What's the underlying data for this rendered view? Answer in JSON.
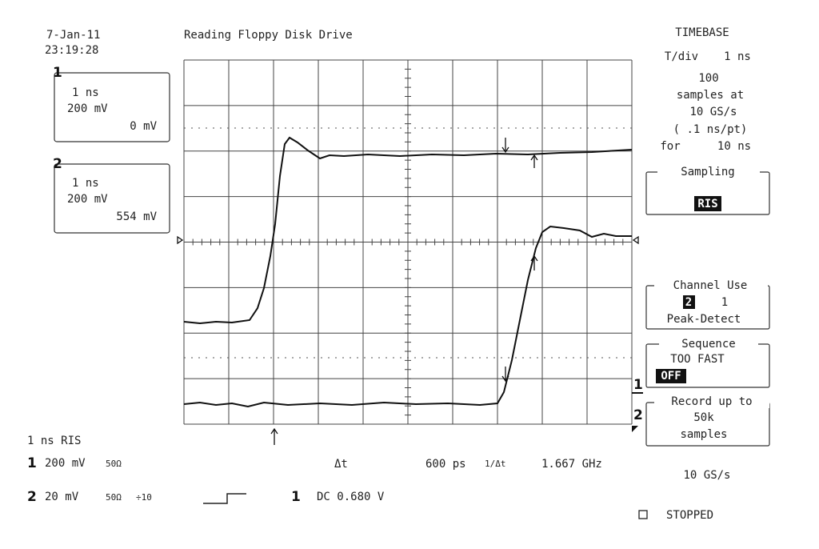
{
  "header": {
    "date": "7-Jan-11",
    "time": "23:19:28",
    "title": "Reading Floppy Disk Drive"
  },
  "channels": [
    {
      "number": "1",
      "tdiv": "1 ns",
      "vdiv": "200 mV",
      "offset": "0 mV"
    },
    {
      "number": "2",
      "tdiv": "1 ns",
      "vdiv": "200 mV",
      "offset": "554 mV"
    }
  ],
  "timebase": {
    "title": "TIMEBASE",
    "tdiv_label": "T/div",
    "tdiv": "1 ns",
    "samples": "100",
    "samples_at": "samples at",
    "rate": "10 GS/s",
    "per_point": "( .1 ns/pt)",
    "for_label": "for",
    "duration": "10 ns"
  },
  "menu": {
    "sampling": {
      "title": "Sampling",
      "value": "RIS"
    },
    "channel_use": {
      "title": "Channel Use",
      "selected": "2",
      "other": "1",
      "mode": "Peak-Detect"
    },
    "sequence": {
      "title": "Sequence",
      "status": "TOO FAST",
      "value": "OFF"
    },
    "record": {
      "title": "Record up to",
      "amount": "50k",
      "unit": "samples"
    }
  },
  "sample_rate": "10 GS/s",
  "state": "STOPPED",
  "trace_markers": [
    "1",
    "2"
  ],
  "footer": {
    "mode": "1 ns RIS",
    "ch1": {
      "number": "1",
      "vdiv": "200 mV",
      "impedance": "50Ω"
    },
    "ch2": {
      "number": "2",
      "vdiv": "20 mV",
      "impedance": "50Ω",
      "probe": "÷10"
    },
    "delta_t_label": "Δt",
    "delta_t": "600 ps",
    "inverse_label": "1/Δt",
    "frequency": "1.667 GHz",
    "trigger": {
      "source": "1",
      "coupling_level": "DC 0.680 V"
    }
  }
}
